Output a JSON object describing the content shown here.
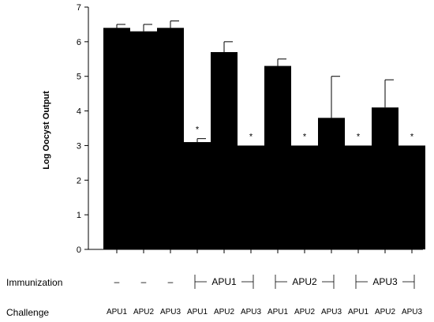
{
  "chart_data": {
    "type": "bar",
    "ylabel": "Log Oocyst Output",
    "ylim": [
      0,
      7
    ],
    "yticks": [
      "0",
      "1",
      "2",
      "3",
      "4",
      "5",
      "6",
      "7"
    ],
    "categories": [
      "APU1",
      "APU2",
      "APU3",
      "APU1",
      "APU2",
      "APU3",
      "APU1",
      "APU2",
      "APU3",
      "APU1",
      "APU2",
      "APU3"
    ],
    "values": [
      6.4,
      6.3,
      6.4,
      3.1,
      5.7,
      3.0,
      5.3,
      3.0,
      3.8,
      3.0,
      4.1,
      3.0
    ],
    "errors": [
      0.1,
      0.2,
      0.2,
      0.1,
      0.3,
      0.0,
      0.2,
      0.0,
      1.2,
      0.0,
      0.8,
      0.0
    ],
    "significant": [
      false,
      false,
      false,
      true,
      false,
      true,
      false,
      true,
      false,
      true,
      false,
      true
    ],
    "significance_marker": "*",
    "bar_color": "#000000",
    "rows": {
      "immunization_label": "Immunization",
      "challenge_label": "Challenge",
      "immunization_values": [
        "–",
        "–",
        "–"
      ],
      "immunization_groups": [
        "APU1",
        "APU2",
        "APU3"
      ]
    }
  }
}
